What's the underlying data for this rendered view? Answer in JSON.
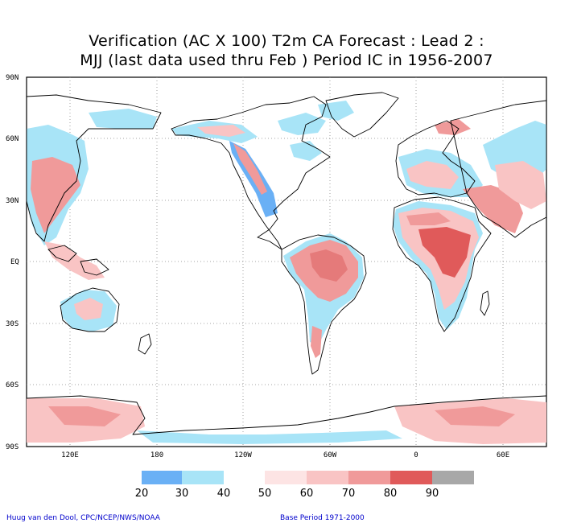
{
  "title": {
    "line1": "Verification (AC X 100) T2m CA Forecast : Lead 2 :",
    "line2": "MJJ (last data used thru Feb ) Period IC in 1956-2007"
  },
  "axes": {
    "lat_labels": [
      "90N",
      "60N",
      "30N",
      "EQ",
      "30S",
      "60S",
      "90S"
    ],
    "lon_labels": [
      "120E",
      "180",
      "120W",
      "60W",
      "0",
      "60E"
    ]
  },
  "legend": {
    "labels": [
      "20",
      "30",
      "40",
      "50",
      "60",
      "70",
      "80",
      "90"
    ],
    "colors": [
      "#6ab0f5",
      "#a8e4f7",
      "#ffffff",
      "#fde4e4",
      "#f9c4c4",
      "#f09a9a",
      "#e57a7a",
      "#e05a5a",
      "#a8a8a8"
    ]
  },
  "footer": {
    "left": "Huug van den Dool, CPC/NCEP/NWS/NOAA",
    "right": "Base Period 1971-2000"
  },
  "colors": {
    "land_outline": "#000000",
    "grid": "#888888"
  }
}
